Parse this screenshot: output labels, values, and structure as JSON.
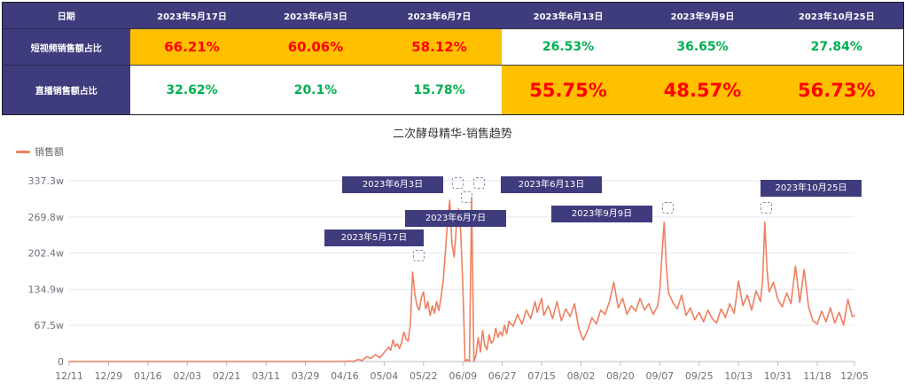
{
  "table": {
    "header": [
      "日期",
      "2023年5月17日",
      "2023年6月3日",
      "2023年6月7日",
      "2023年6月13日",
      "2023年9月9日",
      "2023年10月25日"
    ],
    "rows": [
      {
        "label": "短视频销售额占比",
        "values": [
          "66.21%",
          "60.06%",
          "58.12%",
          "26.53%",
          "36.65%",
          "27.84%"
        ],
        "highlight": [
          true,
          true,
          true,
          false,
          false,
          false
        ]
      },
      {
        "label": "直播销售额占比",
        "values": [
          "32.62%",
          "20.1%",
          "15.78%",
          "55.75%",
          "48.57%",
          "56.73%"
        ],
        "highlight": [
          false,
          false,
          false,
          true,
          true,
          true
        ]
      }
    ]
  },
  "colors": {
    "header_bg": "#3f3c7d",
    "highlight_bg": "#ffc000",
    "red_text": "#ff0000",
    "green_text": "#00b050",
    "line": "#ee7f5f"
  },
  "chart_data": {
    "type": "line",
    "title": "二次酵母精华-销售趋势",
    "legend_placement": "top-left",
    "grid": true,
    "x_ticks": [
      "12/11",
      "12/29",
      "01/16",
      "02/03",
      "02/21",
      "03/11",
      "03/29",
      "04/16",
      "05/04",
      "05/22",
      "06/09",
      "06/27",
      "07/15",
      "08/02",
      "08/20",
      "09/07",
      "09/25",
      "10/13",
      "10/31",
      "11/18",
      "12/05"
    ],
    "y_ticks": [
      "0",
      "67.5w",
      "134.9w",
      "202.4w",
      "269.8w",
      "337.3w"
    ],
    "ylim": [
      0,
      337.3
    ],
    "x": [
      "12/11",
      "04/16",
      "04/18",
      "04/20",
      "04/22",
      "04/24",
      "04/26",
      "04/28",
      "04/30",
      "05/02",
      "05/04",
      "05/06",
      "05/07",
      "05/08",
      "05/09",
      "05/10",
      "05/11",
      "05/12",
      "05/13",
      "05/14",
      "05/15",
      "05/16",
      "05/17",
      "05/18",
      "05/19",
      "05/20",
      "05/21",
      "05/22",
      "05/23",
      "05/24",
      "05/25",
      "05/26",
      "05/27",
      "05/28",
      "05/29",
      "05/30",
      "05/31",
      "06/01",
      "06/02",
      "06/03",
      "06/04",
      "06/05",
      "06/06",
      "06/07",
      "06/08",
      "06/09",
      "06/10",
      "06/11",
      "06/12",
      "06/13",
      "06/14",
      "06/15",
      "06/16",
      "06/17",
      "06/18",
      "06/19",
      "06/20",
      "06/21",
      "06/22",
      "06/23",
      "06/24",
      "06/25",
      "06/26",
      "06/27",
      "06/28",
      "06/29",
      "06/30",
      "07/02",
      "07/04",
      "07/06",
      "07/08",
      "07/10",
      "07/12",
      "07/13",
      "07/15",
      "07/16",
      "07/18",
      "07/20",
      "07/22",
      "07/24",
      "07/26",
      "07/28",
      "07/30",
      "08/01",
      "08/03",
      "08/05",
      "08/07",
      "08/09",
      "08/11",
      "08/13",
      "08/15",
      "08/17",
      "08/19",
      "08/21",
      "08/23",
      "08/25",
      "08/27",
      "08/29",
      "08/31",
      "09/02",
      "09/04",
      "09/06",
      "09/07",
      "09/08",
      "09/09",
      "09/10",
      "09/11",
      "09/13",
      "09/15",
      "09/17",
      "09/19",
      "09/21",
      "09/23",
      "09/25",
      "09/27",
      "09/29",
      "10/01",
      "10/03",
      "10/05",
      "10/07",
      "10/09",
      "10/11",
      "10/13",
      "10/15",
      "10/17",
      "10/19",
      "10/21",
      "10/23",
      "10/24",
      "10/25",
      "10/26",
      "10/27",
      "10/29",
      "10/31",
      "11/02",
      "11/04",
      "11/06",
      "11/08",
      "11/10",
      "11/12",
      "11/14",
      "11/16",
      "11/18",
      "11/20",
      "11/22",
      "11/24",
      "11/26",
      "11/28",
      "11/30",
      "12/02",
      "12/04",
      "12/05"
    ],
    "series": [
      {
        "name": "销售额",
        "values": [
          0,
          0,
          1,
          0,
          4,
          2,
          9,
          6,
          13,
          7,
          17,
          27,
          21,
          40,
          28,
          33,
          24,
          36,
          55,
          42,
          38,
          70,
          167,
          128,
          104,
          96,
          118,
          130,
          98,
          112,
          86,
          104,
          90,
          112,
          95,
          120,
          150,
          205,
          262,
          301,
          220,
          195,
          250,
          285,
          240,
          140,
          0,
          4,
          0,
          306,
          0,
          12,
          45,
          18,
          58,
          30,
          22,
          50,
          34,
          40,
          62,
          45,
          55,
          48,
          68,
          52,
          75,
          66,
          88,
          70,
          96,
          80,
          112,
          92,
          118,
          86,
          104,
          80,
          112,
          76,
          98,
          84,
          108,
          62,
          40,
          58,
          82,
          70,
          96,
          88,
          112,
          148,
          100,
          118,
          88,
          104,
          94,
          118,
          96,
          108,
          88,
          104,
          132,
          200,
          260,
          176,
          128,
          110,
          98,
          124,
          86,
          100,
          78,
          92,
          74,
          96,
          80,
          72,
          98,
          82,
          108,
          90,
          150,
          104,
          124,
          96,
          132,
          112,
          150,
          260,
          172,
          130,
          148,
          116,
          102,
          128,
          108,
          178,
          110,
          172,
          102,
          76,
          70,
          94,
          74,
          100,
          72,
          92,
          68,
          116,
          84,
          86
        ]
      }
    ],
    "annotations": [
      "2023年5月17日",
      "2023年6月3日",
      "2023年6月7日",
      "2023年6月13日",
      "2023年9月9日",
      "2023年10月25日"
    ]
  }
}
